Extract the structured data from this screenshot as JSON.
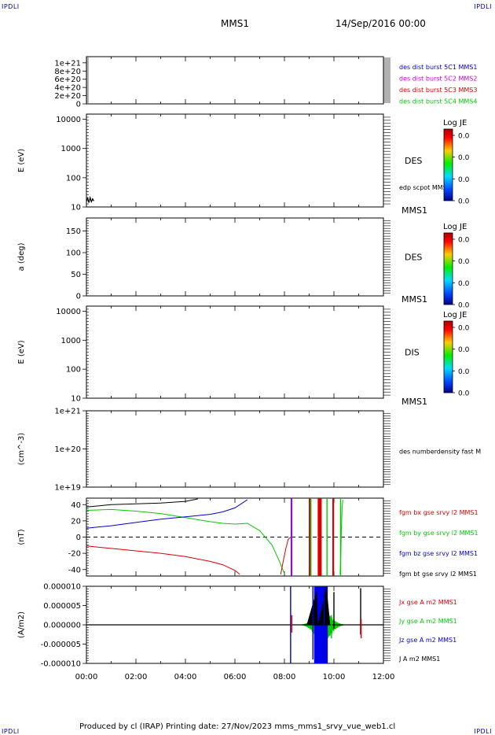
{
  "header": {
    "corner_left": "IPDLI",
    "corner_right": "IPDLI",
    "spacecraft": "MMS1",
    "date": "14/Sep/2016 00:00"
  },
  "footer": {
    "text": "Produced by cl (IRAP)   Printing date: 27/Nov/2023   mms_mms1_srvy_vue_web1.cl",
    "corner_left": "IPDLI",
    "corner_right": "IPDLI"
  },
  "time_axis": {
    "min_hours": 0,
    "max_hours": 12,
    "tick_labels": [
      "00:00",
      "02:00",
      "04:00",
      "06:00",
      "08:00",
      "10:00",
      "12:00"
    ]
  },
  "colors": {
    "red": "#dd0000",
    "green": "#00cc00",
    "blue": "#0000cc",
    "magenta": "#cc00cc",
    "black": "#000000"
  },
  "chart_data": [
    {
      "type": "line",
      "panel": "distribution-burst",
      "ylabel": "",
      "ylim": [
        0,
        1.15e+21
      ],
      "ytick_labels": [
        "1e+21",
        "8e+20",
        "6e+20",
        "4e+20",
        "2e+20",
        "0"
      ],
      "ytick_values": [
        1e+21,
        8e+20,
        6e+20,
        4e+20,
        2e+20,
        0
      ],
      "zero_line": true,
      "legend": [
        {
          "name": "des dist burst 5C1 MMS1",
          "color": "#0000cc"
        },
        {
          "name": "des dist burst 5C2 MMS2",
          "color": "#cc00cc"
        },
        {
          "name": "des dist burst 5C3 MMS3",
          "color": "#dd0000"
        },
        {
          "name": "des dist burst 5C4 MMS4",
          "color": "#00cc00"
        }
      ]
    },
    {
      "type": "heatmap",
      "panel": "des-energy",
      "ylabel": "E (eV)",
      "scale": "log",
      "ylim": [
        10,
        15000
      ],
      "ytick_labels": [
        "10000",
        "1000",
        "100",
        "10"
      ],
      "ytick_values": [
        10000,
        1000,
        100,
        10
      ],
      "label": "DES",
      "sublabel": "MMS1",
      "overlay_legend": "edp scpot MMS1",
      "overlay_series": {
        "x_hours": [
          0.0,
          0.05,
          0.1,
          0.15,
          0.2,
          0.25,
          0.3
        ],
        "values": [
          16,
          20,
          14,
          21,
          15,
          19,
          16
        ]
      },
      "colorbar": {
        "title": "Log JE",
        "tick_labels": [
          "0.0",
          "0.0",
          "0.0",
          "0.0"
        ]
      }
    },
    {
      "type": "heatmap",
      "panel": "des-pitch",
      "ylabel": "a (deg)",
      "ylim": [
        0,
        180
      ],
      "ytick_labels": [
        "150",
        "100",
        "50",
        "0"
      ],
      "ytick_values": [
        150,
        100,
        50,
        0
      ],
      "label": "DES",
      "sublabel": "MMS1",
      "colorbar": {
        "title": "Log JE",
        "tick_labels": [
          "0.0",
          "0.0",
          "0.0",
          "0.0"
        ]
      }
    },
    {
      "type": "heatmap",
      "panel": "dis-energy",
      "ylabel": "E (eV)",
      "scale": "log",
      "ylim": [
        10,
        15000
      ],
      "ytick_labels": [
        "10000",
        "1000",
        "100",
        "10"
      ],
      "ytick_values": [
        10000,
        1000,
        100,
        10
      ],
      "label": "DIS",
      "sublabel": "MMS1",
      "colorbar": {
        "title": "Log JE",
        "tick_labels": [
          "0.0",
          "0.0",
          "0.0",
          "0.0"
        ]
      }
    },
    {
      "type": "line",
      "panel": "density",
      "ylabel": "(cm^-3)",
      "scale": "log",
      "ylim": [
        1e+19,
        1e+21
      ],
      "ytick_labels": [
        "1e+21",
        "1e+20",
        "1e+19"
      ],
      "ytick_values": [
        1e+21,
        1e+20,
        1e+19
      ],
      "legend": [
        {
          "name": "des numberdensity fast M",
          "color": "#000000"
        }
      ]
    },
    {
      "type": "line",
      "panel": "magnetic-field",
      "ylabel": "(nT)",
      "ylim": [
        -48,
        48
      ],
      "ytick_labels": [
        "40",
        "20",
        "0",
        "-20",
        "-40"
      ],
      "ytick_values": [
        40,
        20,
        0,
        -20,
        -40
      ],
      "zero_line": true,
      "legend": [
        {
          "name": "fgm bx gse srvy l2 MMS1",
          "color": "#dd0000"
        },
        {
          "name": "fgm by gse srvy l2 MMS1",
          "color": "#00cc00"
        },
        {
          "name": "fgm bz gse srvy l2 MMS1",
          "color": "#0000cc"
        },
        {
          "name": "fgm bt gse srvy l2 MMS1",
          "color": "#000000"
        }
      ],
      "series": [
        {
          "name": "fgm bt gse srvy l2 MMS1",
          "color": "#000000",
          "x_hours": [
            0.0,
            1.0,
            2.0,
            3.0,
            4.0,
            4.5
          ],
          "values": [
            37,
            40,
            41,
            42,
            44,
            47
          ]
        },
        {
          "name": "fgm by gse srvy l2 MMS1",
          "color": "#00cc00",
          "x_hours": [
            0.0,
            1.0,
            2.0,
            3.0,
            4.0,
            5.0,
            5.5,
            6.0,
            6.5,
            7.0,
            7.5,
            7.8,
            8.0
          ],
          "values": [
            33,
            34,
            32,
            29,
            24,
            19,
            17,
            16,
            17,
            8,
            -10,
            -30,
            -45
          ]
        },
        {
          "name": "fgm bz gse srvy l2 MMS1",
          "color": "#0000cc",
          "x_hours": [
            0.0,
            1.0,
            2.0,
            3.0,
            4.0,
            5.0,
            5.5,
            6.0,
            6.5
          ],
          "values": [
            11,
            14,
            18,
            22,
            25,
            28,
            31,
            36,
            46
          ]
        },
        {
          "name": "fgm bx gse srvy l2 MMS1",
          "color": "#dd0000",
          "x_hours": [
            0.0,
            1.0,
            2.0,
            3.0,
            4.0,
            5.0,
            5.5,
            6.0,
            6.2
          ],
          "values": [
            -11,
            -14,
            -17,
            -20,
            -24,
            -30,
            -34,
            -41,
            -46
          ]
        },
        {
          "name": "fgm bx gse srvy l2 MMS1 (late)",
          "color": "#dd0000",
          "x_hours": [
            7.85,
            7.95,
            8.05,
            8.15,
            8.25
          ],
          "values": [
            -46,
            -30,
            -15,
            -3,
            0
          ]
        },
        {
          "name": "fgm by gse srvy l2 MMS1 (late)",
          "color": "#00cc00",
          "x_hours": [
            10.25,
            10.28,
            10.3,
            10.33,
            10.36
          ],
          "values": [
            -46,
            -20,
            10,
            35,
            46
          ]
        }
      ],
      "spikes": [
        {
          "x_hours": 8.28,
          "color": "#0000cc"
        },
        {
          "x_hours": 8.3,
          "color": "#cc00cc"
        },
        {
          "x_hours": 9.02,
          "color": "#dd0000"
        },
        {
          "x_hours": 9.07,
          "color": "#00cc00"
        },
        {
          "x_hours": 9.38,
          "color": "#dd0000"
        },
        {
          "x_hours": 9.44,
          "color": "#dd0000"
        },
        {
          "x_hours": 9.47,
          "color": "#dd0000"
        },
        {
          "x_hours": 9.72,
          "color": "#00cc00"
        },
        {
          "x_hours": 9.97,
          "color": "#dd0000"
        },
        {
          "x_hours": 10.27,
          "color": "#00cc00"
        }
      ]
    },
    {
      "type": "line",
      "panel": "current-density",
      "ylabel": "(A/m2)",
      "ylim": [
        -1e-05,
        1e-05
      ],
      "ytick_labels": [
        "0.000010",
        "0.000005",
        "0.000000",
        "-0.000005",
        "-0.000010"
      ],
      "ytick_values": [
        1e-05,
        5e-06,
        0,
        -5e-06,
        -1e-05
      ],
      "legend": [
        {
          "name": "Jx gse A m2 MMS1",
          "color": "#dd0000"
        },
        {
          "name": "Jy gse A m2 MMS1",
          "color": "#00cc00"
        },
        {
          "name": "Jz gse A m2 MMS1",
          "color": "#0000cc"
        },
        {
          "name": "J A m2 MMS1",
          "color": "#000000"
        }
      ],
      "active_interval_hours": [
        8.2,
        10.4
      ],
      "spikes": [
        {
          "x_hours": 8.25,
          "color": "#0000cc",
          "low": -1e-05,
          "high": 1e-05
        },
        {
          "x_hours": 8.3,
          "color": "#dd0000",
          "low": -2e-06,
          "high": 2.5e-06
        },
        {
          "x_hours": 9.15,
          "color": "#0000cc",
          "low": -9e-06,
          "high": 1e-05
        },
        {
          "x_hours": 9.6,
          "color": "#0000cc",
          "low": -1e-05,
          "high": 1e-05
        },
        {
          "x_hours": 9.9,
          "color": "#00cc00",
          "low": -3.5e-06,
          "high": 2.5e-06
        },
        {
          "x_hours": 10.0,
          "color": "#000000",
          "low": -1e-06,
          "high": 8.5e-06
        },
        {
          "x_hours": 11.08,
          "color": "#000000",
          "low": -2.5e-06,
          "high": 9.5e-06
        },
        {
          "x_hours": 11.1,
          "color": "#dd0000",
          "low": -3.5e-06,
          "high": 1.5e-06
        }
      ],
      "envelope": {
        "x_hours_range": [
          8.2,
          10.4
        ],
        "max_abs": 4e-06
      }
    }
  ]
}
